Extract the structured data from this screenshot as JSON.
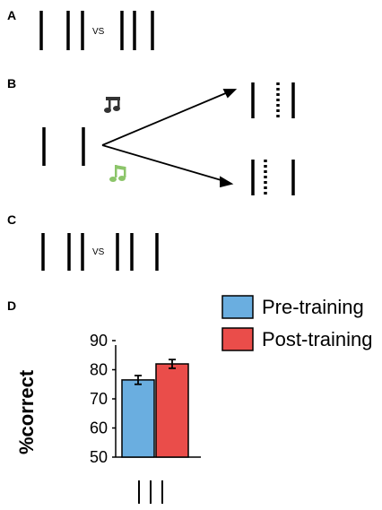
{
  "panels": {
    "a": {
      "label": "A",
      "vs": "VS"
    },
    "b": {
      "label": "B"
    },
    "c": {
      "label": "C",
      "vs": "VS"
    },
    "d": {
      "label": "D"
    }
  },
  "icons": {
    "musical_note": "music-note-icon",
    "musical_notes": "music-notes-icon"
  },
  "colors": {
    "pre": "#6aaee0",
    "post": "#ea4d4a",
    "note_dark": "#333333",
    "note_green": "#8cc56a"
  },
  "chart_data": {
    "type": "bar",
    "categories": [
      "Pre-training",
      "Post-training"
    ],
    "values": [
      76.5,
      82
    ],
    "errors": [
      1.5,
      1.5
    ],
    "series_names": [
      "Pre-training",
      "Post-training"
    ],
    "ylabel": "%correct",
    "yticks": [
      "90",
      "80",
      "70",
      "60",
      "50"
    ],
    "ylim": [
      50,
      90
    ],
    "legend": "top-right",
    "grid": false
  }
}
